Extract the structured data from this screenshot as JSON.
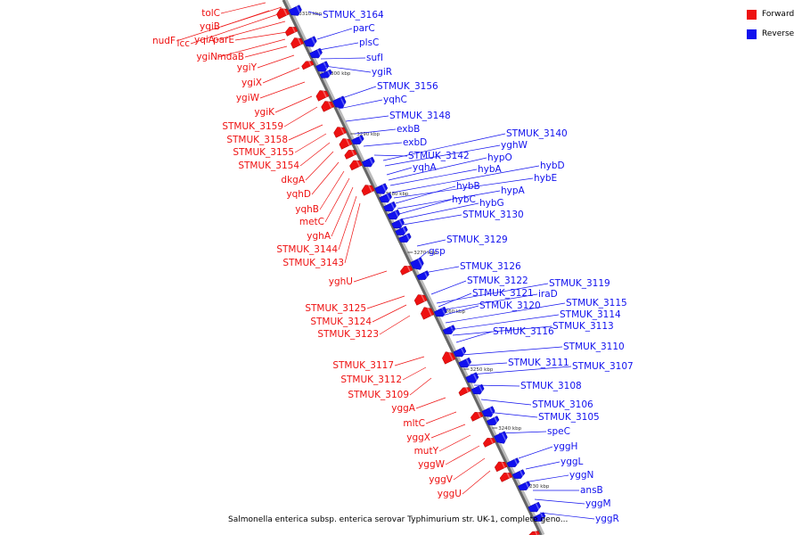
{
  "caption": "Salmonella enterica subsp. enterica serovar Typhimurium str. UK-1, complete geno...",
  "legend": [
    {
      "label": "Forward",
      "color": "#ee1111"
    },
    {
      "label": "Reverse",
      "color": "#1111ee"
    }
  ],
  "colors": {
    "forward": "#ee1111",
    "reverse": "#1111ee",
    "backbone": "#666666"
  },
  "ticks": [
    "3310 kbp",
    "3300 kbp",
    "3290 kbp",
    "3280 kbp",
    "3270 kbp",
    "3260 kbp",
    "3250 kbp",
    "3240 kbp",
    "3230 kbp"
  ],
  "forward_labels": [
    "tolC",
    "yqiB",
    "nudF",
    "icc",
    "yqiA",
    "parE",
    "ygiN",
    "mdaB",
    "ygiY",
    "ygiX",
    "ygiW",
    "ygiK",
    "STMUK_3159",
    "STMUK_3158",
    "STMUK_3155",
    "STMUK_3154",
    "dkgA",
    "yqhD",
    "yqhB",
    "metC",
    "yghA",
    "STMUK_3144",
    "STMUK_3143",
    "yghU",
    "STMUK_3125",
    "STMUK_3124",
    "STMUK_3123",
    "STMUK_3117",
    "STMUK_3112",
    "STMUK_3109",
    "yggA",
    "mltC",
    "yggX",
    "mutY",
    "yggW",
    "yggV",
    "yggU"
  ],
  "reverse_labels": [
    "STMUK_3164",
    "parC",
    "plsC",
    "sufI",
    "ygiR",
    "STMUK_3156",
    "yqhC",
    "STMUK_3148",
    "exbB",
    "exbD",
    "STMUK_3142",
    "STMUK_3140",
    "yghW",
    "yqhA",
    "hypO",
    "hybA",
    "hybD",
    "hybE",
    "hybB",
    "hypA",
    "hybC",
    "hybG",
    "STMUK_3130",
    "STMUK_3129",
    "gsp",
    "STMUK_3126",
    "STMUK_3122",
    "STMUK_3119",
    "STMUK_3121",
    "iraD",
    "STMUK_3120",
    "STMUK_3115",
    "STMUK_3114",
    "STMUK_3113",
    "STMUK_3116",
    "STMUK_3110",
    "STMUK_3111",
    "STMUK_3107",
    "STMUK_3108",
    "STMUK_3106",
    "STMUK_3105",
    "speC",
    "yggH",
    "yggL",
    "yggN",
    "ansB",
    "yggM",
    "yggR"
  ]
}
